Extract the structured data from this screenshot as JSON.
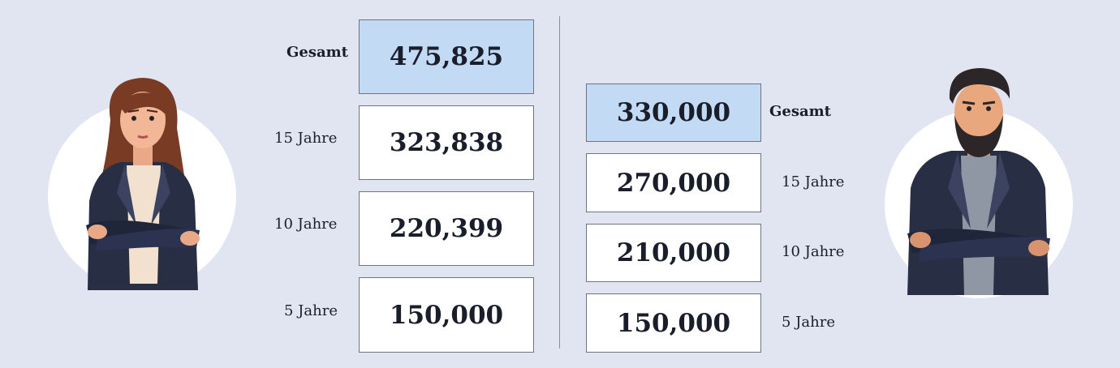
{
  "left_column": {
    "total": {
      "label": "Gesamt",
      "value": "475,825"
    },
    "rows": [
      {
        "label": "15 Jahre",
        "value": "323,838"
      },
      {
        "label": "10 Jahre",
        "value": "220,399"
      },
      {
        "label": "5 Jahre",
        "value": "150,000"
      }
    ],
    "avatar": "woman-arms-crossed-illustration"
  },
  "right_column": {
    "total": {
      "label": "Gesamt",
      "value": "330,000"
    },
    "rows": [
      {
        "label": "15 Jahre",
        "value": "270,000"
      },
      {
        "label": "10 Jahre",
        "value": "210,000"
      },
      {
        "label": "5 Jahre",
        "value": "150,000"
      }
    ],
    "avatar": "man-arms-crossed-illustration"
  },
  "colors": {
    "background": "#e1e4f1",
    "total_box": "#c3daf5",
    "box": "#ffffff",
    "border": "#6f7480",
    "text": "#1a1e2b"
  }
}
